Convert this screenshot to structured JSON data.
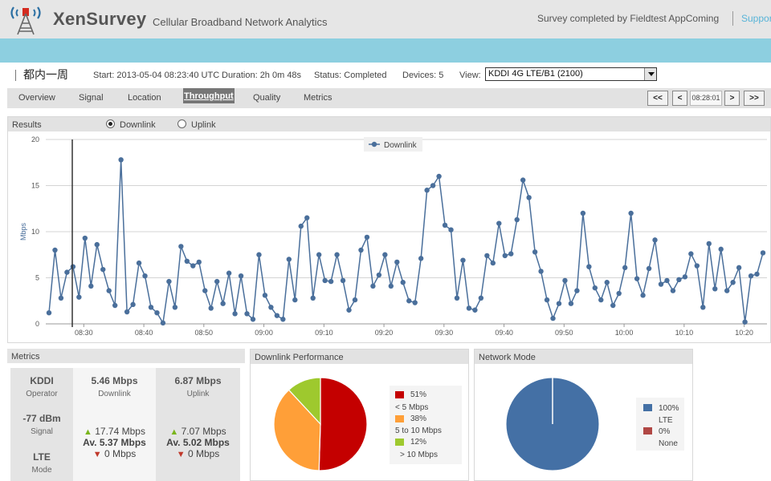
{
  "header": {
    "app_name": "XenSurvey",
    "tagline": "Cellular Broadband Network Analytics",
    "completed": "Survey completed by Fieldtest AppComing",
    "support": "Support"
  },
  "info": {
    "survey_name": "都内一周",
    "start": "Start: 2013-05-04 08:23:40 UTC",
    "duration": "Duration: 2h 0m 48s",
    "status": "Status: Completed",
    "devices": "Devices: 5",
    "view_label": "View:",
    "view_value": "KDDI 4G LTE/B1 (2100)"
  },
  "tabs": [
    {
      "label": "Overview"
    },
    {
      "label": "Signal"
    },
    {
      "label": "Location"
    },
    {
      "label": "Throughput"
    },
    {
      "label": "Quality"
    },
    {
      "label": "Metrics"
    }
  ],
  "nav": {
    "first": "<<",
    "prev": "<",
    "time": "08:28:01",
    "next": ">",
    "last": ">>"
  },
  "results": {
    "title": "Results",
    "downlink_label": "Downlink",
    "uplink_label": "Uplink",
    "selected": "Downlink"
  },
  "chart_data": {
    "type": "line",
    "ylabel": "Mbps",
    "xlabel": "",
    "ylim": [
      0,
      20
    ],
    "y_ticks": [
      "0",
      "5",
      "10",
      "15",
      "20"
    ],
    "x_ticks": [
      {
        "label": "08:30",
        "t": 8.5
      },
      {
        "label": "08:40",
        "t": 8.6667
      },
      {
        "label": "08:50",
        "t": 8.8333
      },
      {
        "label": "09:00",
        "t": 9.0
      },
      {
        "label": "09:10",
        "t": 9.1667
      },
      {
        "label": "09:20",
        "t": 9.3333
      },
      {
        "label": "09:30",
        "t": 9.5
      },
      {
        "label": "09:40",
        "t": 9.6667
      },
      {
        "label": "09:50",
        "t": 9.8333
      },
      {
        "label": "10:00",
        "t": 10.0
      },
      {
        "label": "10:10",
        "t": 10.1667
      },
      {
        "label": "10:20",
        "t": 10.3333
      }
    ],
    "legend": "top-center",
    "grid": true,
    "cursor_time": "08:28:01",
    "series": [
      {
        "name": "Downlink",
        "color": "#4a6f9b",
        "values": [
          1.2,
          8.0,
          2.8,
          5.6,
          6.2,
          2.9,
          9.3,
          4.1,
          8.6,
          5.9,
          3.6,
          2.0,
          17.8,
          1.3,
          2.1,
          6.6,
          5.2,
          1.8,
          1.2,
          0.1,
          4.6,
          1.8,
          8.4,
          6.8,
          6.3,
          6.7,
          3.6,
          1.7,
          4.6,
          2.2,
          5.5,
          1.1,
          5.2,
          1.1,
          0.5,
          7.5,
          3.1,
          1.8,
          0.9,
          0.5,
          7.0,
          2.6,
          10.6,
          11.5,
          2.8,
          7.5,
          4.7,
          4.6,
          7.5,
          4.7,
          1.5,
          2.6,
          8.0,
          9.4,
          4.1,
          5.3,
          7.5,
          4.1,
          6.7,
          4.5,
          2.5,
          2.3,
          7.1,
          14.5,
          15.0,
          16.0,
          10.7,
          10.2,
          2.8,
          6.9,
          1.7,
          1.5,
          2.8,
          7.4,
          6.6,
          10.9,
          7.4,
          7.6,
          11.3,
          15.6,
          13.7,
          7.8,
          5.7,
          2.6,
          0.6,
          2.2,
          4.7,
          2.2,
          3.6,
          12.0,
          6.2,
          3.9,
          2.6,
          4.5,
          2.0,
          3.3,
          6.1,
          12.0,
          4.9,
          3.1,
          6.0,
          9.1,
          4.3,
          4.7,
          3.6,
          4.8,
          5.1,
          7.6,
          6.3,
          1.8,
          8.7,
          3.8,
          8.1,
          3.6,
          4.5,
          6.1,
          0.2,
          5.2,
          5.4,
          7.7
        ]
      }
    ]
  },
  "metrics": {
    "title": "Metrics",
    "operator_value": "KDDI",
    "operator_label": "Operator",
    "signal_value": "-77 dBm",
    "signal_label": "Signal",
    "mode_value": "LTE",
    "mode_label": "Mode",
    "downlink_value": "5.46 Mbps",
    "downlink_label": "Downlink",
    "uplink_value": "6.87 Mbps",
    "uplink_label": "Uplink",
    "dl_max": "17.74 Mbps",
    "dl_avg": "Av. 5.37 Mbps",
    "dl_min": "0 Mbps",
    "ul_max": "7.07 Mbps",
    "ul_avg": "Av. 5.02 Mbps",
    "ul_min": "0 Mbps"
  },
  "perf": {
    "title": "Downlink Performance",
    "slices": [
      {
        "pct": 51,
        "label": "51%",
        "sub": "< 5 Mbps",
        "color": "#c40000"
      },
      {
        "pct": 38,
        "label": "38%",
        "sub": "5 to 10 Mbps",
        "color": "#ff9f38"
      },
      {
        "pct": 12,
        "label": "12%",
        "sub": "> 10 Mbps",
        "color": "#9ec92e"
      }
    ]
  },
  "mode": {
    "title": "Network Mode",
    "slices": [
      {
        "pct": 100,
        "label": "100%",
        "sub": "LTE",
        "color": "#4470a5"
      },
      {
        "pct": 0,
        "label": "0%",
        "sub": "None",
        "color": "#b04744"
      }
    ]
  }
}
